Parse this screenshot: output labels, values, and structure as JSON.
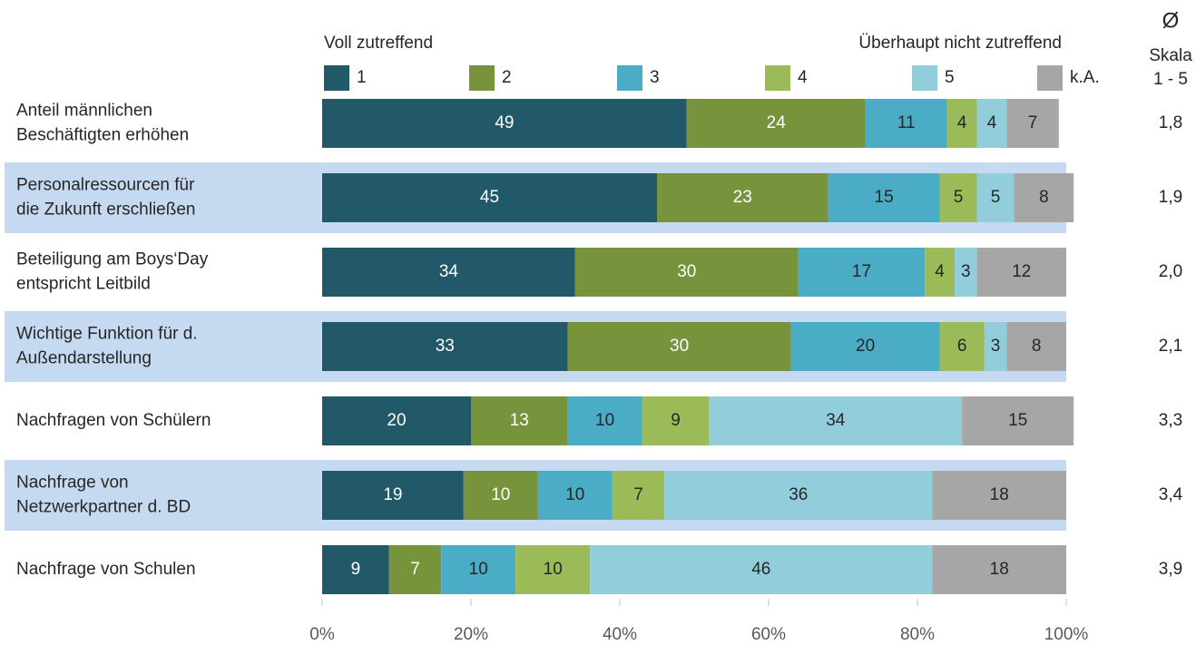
{
  "chart_data": {
    "type": "stacked_barh",
    "legend_left": "Voll zutreffend",
    "legend_right": "Überhaupt nicht zutreffend",
    "avg_header": [
      "Ø",
      "Skala",
      "1 - 5"
    ],
    "categories": [
      [
        "Anteil männlichen",
        "Beschäftigten erhöhen"
      ],
      [
        "Personalressourcen für",
        "die Zukunft erschließen"
      ],
      [
        "Beteiligung am Boys‘Day",
        "entspricht Leitbild"
      ],
      [
        "Wichtige Funktion für d.",
        "Außendarstellung"
      ],
      [
        "Nachfragen von Schülern"
      ],
      [
        "Nachfrage von",
        "Netzwerkpartner d. BD"
      ],
      [
        "Nachfrage von Schulen"
      ]
    ],
    "series": [
      {
        "name": "1",
        "color": "#215968",
        "values": [
          49,
          45,
          34,
          33,
          20,
          19,
          9
        ]
      },
      {
        "name": "2",
        "color": "#77933c",
        "values": [
          24,
          23,
          30,
          30,
          13,
          10,
          7
        ]
      },
      {
        "name": "3",
        "color": "#4bacc6",
        "values": [
          11,
          15,
          17,
          20,
          10,
          10,
          10
        ]
      },
      {
        "name": "4",
        "color": "#9bbb59",
        "values": [
          4,
          5,
          4,
          6,
          9,
          7,
          10
        ]
      },
      {
        "name": "5",
        "color": "#92cddc",
        "values": [
          4,
          5,
          3,
          3,
          34,
          36,
          46
        ]
      },
      {
        "name": "k.A.",
        "color": "#a6a6a6",
        "values": [
          7,
          8,
          12,
          8,
          15,
          18,
          18
        ]
      }
    ],
    "averages": [
      "1,8",
      "1,9",
      "2,0",
      "2,1",
      "3,3",
      "3,4",
      "3,9"
    ],
    "xlim": [
      0,
      100
    ],
    "xticks": [
      {
        "value": 0,
        "label": "0%"
      },
      {
        "value": 20,
        "label": "20%"
      },
      {
        "value": 40,
        "label": "40%"
      },
      {
        "value": 60,
        "label": "60%"
      },
      {
        "value": 80,
        "label": "80%"
      },
      {
        "value": 100,
        "label": "100%"
      }
    ]
  }
}
